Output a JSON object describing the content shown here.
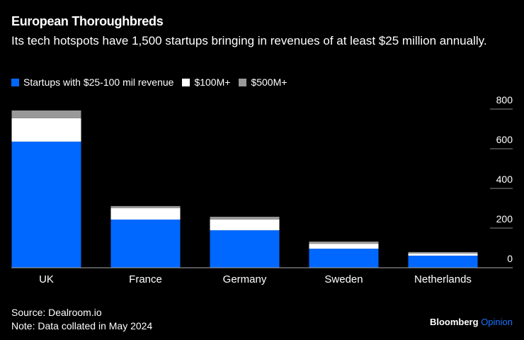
{
  "header": {
    "title": "European Thoroughbreds",
    "subtitle": "Its tech hotspots have 1,500 startups bringing in revenues of at least $25 million annually."
  },
  "footer": {
    "source": "Source: Dealroom.io",
    "note": "Note: Data collated in May 2024",
    "brand": "Bloomberg",
    "brand_suffix": "Opinion"
  },
  "chart_data": {
    "type": "bar",
    "stacked": true,
    "title": "European Thoroughbreds",
    "subtitle": "Its tech hotspots have 1,500 startups bringing in revenues of at least $25 million annually.",
    "xlabel": "",
    "ylabel": "",
    "categories": [
      "UK",
      "France",
      "Germany",
      "Sweden",
      "Netherlands"
    ],
    "series": [
      {
        "name": "Startups with $25-100 mil revenue",
        "color": "#0068ff",
        "values": [
          636,
          243,
          189,
          96,
          61
        ]
      },
      {
        "name": "$100M+",
        "color": "#ffffff",
        "values": [
          118,
          57,
          54,
          25,
          11
        ]
      },
      {
        "name": "$500M+",
        "color": "#999999",
        "values": [
          39,
          11,
          14,
          11,
          7
        ]
      }
    ],
    "ylim": [
      0,
      800
    ],
    "yticks": [
      0,
      200,
      400,
      600,
      800
    ],
    "y_axis_side": "right",
    "grid": false,
    "legend_position": "top-left"
  }
}
